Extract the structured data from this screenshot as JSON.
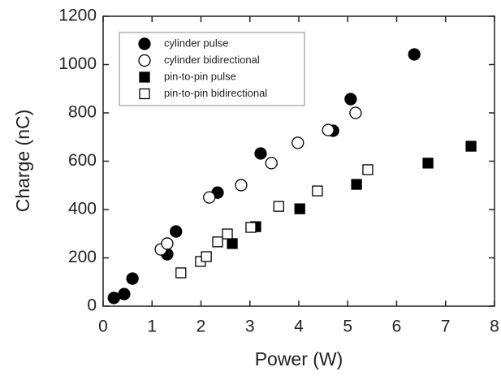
{
  "chart_data": {
    "type": "scatter",
    "x_label": "Power (W)",
    "y_label": "Charge (nC)",
    "xlim": [
      0,
      8
    ],
    "ylim": [
      0,
      1200
    ],
    "xticks": [
      0,
      1,
      2,
      3,
      4,
      5,
      6,
      7,
      8
    ],
    "yticks": [
      0,
      200,
      400,
      600,
      800,
      1000,
      1200
    ],
    "legend_position": "upper left",
    "series": [
      {
        "name": "cylinder pulse",
        "color": "#000000",
        "marker": "circle",
        "filled": true,
        "x": [
          0.22,
          0.43,
          0.6,
          1.31,
          1.49,
          2.34,
          3.22,
          4.7,
          5.06,
          6.36
        ],
        "values": [
          34,
          50,
          114,
          215,
          309,
          470,
          632,
          726,
          857,
          1042
        ]
      },
      {
        "name": "cylinder bidirectional",
        "color": "#000000",
        "marker": "circle",
        "filled": false,
        "x": [
          1.18,
          1.31,
          2.17,
          2.82,
          3.44,
          3.98,
          4.6,
          5.16
        ],
        "values": [
          235,
          259,
          450,
          501,
          592,
          676,
          729,
          800
        ]
      },
      {
        "name": "pin-to-pin pulse",
        "color": "#000000",
        "marker": "square",
        "filled": true,
        "x": [
          2.64,
          3.12,
          4.02,
          5.18,
          6.64,
          7.52
        ],
        "values": [
          259,
          329,
          403,
          504,
          592,
          662
        ]
      },
      {
        "name": "pin-to-pin bidirectional",
        "color": "#000000",
        "marker": "square",
        "filled": false,
        "x": [
          1.59,
          1.99,
          2.11,
          2.34,
          2.54,
          3.02,
          3.59,
          4.38,
          5.41
        ],
        "values": [
          138,
          185,
          205,
          266,
          299,
          326,
          413,
          477,
          565
        ]
      }
    ]
  }
}
